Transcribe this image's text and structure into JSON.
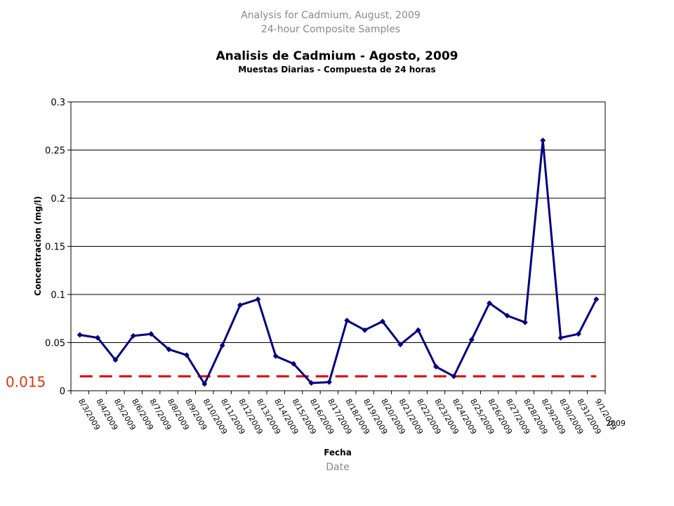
{
  "header": {
    "line1": "Analysis for Cadmium,  August, 2009",
    "line2": "24-hour Composite Samples"
  },
  "footer": {
    "english_xlabel": "Date"
  },
  "chart_data": {
    "type": "line",
    "title": "Analisis de Cadmium - Agosto, 2009",
    "subtitle": "Muestas Diarias - Compuesta de 24 horas",
    "xlabel": "Fecha",
    "ylabel": "Concentracion (mg/l)",
    "ylim": [
      0,
      0.3
    ],
    "yticks": [
      0,
      0.05,
      0.1,
      0.15,
      0.2,
      0.25,
      0.3
    ],
    "ytick_labels": [
      "0",
      "0.05",
      "0.1",
      "0.15",
      "0.2",
      "0.25",
      "0.3"
    ],
    "grid": true,
    "legend": "none",
    "categories": [
      "8/3/2009",
      "8/4/2009",
      "8/5/2009",
      "8/6/2009",
      "8/7/2009",
      "8/8/2009",
      "8/9/2009",
      "8/10/2009",
      "8/11/2009",
      "8/12/2009",
      "8/13/2009",
      "8/14/2009",
      "8/15/2009",
      "8/16/2009",
      "8/17/2009",
      "8/18/2009",
      "8/19/2009",
      "8/20/2009",
      "8/21/2009",
      "8/22/2009",
      "8/23/2009",
      "8/24/2009",
      "8/25/2009",
      "8/26/2009",
      "8/27/2009",
      "8/28/2009",
      "8/29/2009",
      "8/30/2009",
      "8/31/2009",
      "9/1/2009"
    ],
    "overlap_label": "2009",
    "series": [
      {
        "color": "#000080",
        "values": [
          0.058,
          0.055,
          0.032,
          0.057,
          0.059,
          0.043,
          0.037,
          0.007,
          0.047,
          0.089,
          0.095,
          0.036,
          0.028,
          0.008,
          0.009,
          0.073,
          0.063,
          0.072,
          0.048,
          0.063,
          0.025,
          0.015,
          0.053,
          0.091,
          0.078,
          0.071,
          0.26,
          0.055,
          0.059,
          0.095
        ]
      }
    ],
    "limit_line": {
      "value": 0.015,
      "label": "0.015",
      "color": "#e60000",
      "style": "dashed"
    }
  }
}
